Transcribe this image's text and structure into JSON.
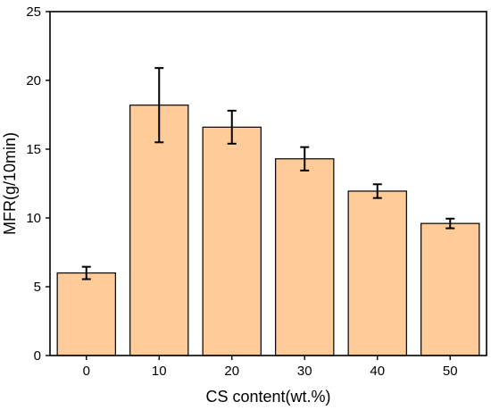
{
  "chart_data": {
    "type": "bar",
    "title": "",
    "xlabel": "CS content(wt.%)",
    "ylabel": "MFR(g/10min)",
    "categories": [
      "0",
      "10",
      "20",
      "30",
      "40",
      "50"
    ],
    "values": [
      6.0,
      18.2,
      16.6,
      14.3,
      11.95,
      9.6
    ],
    "errors": [
      0.45,
      2.7,
      1.2,
      0.85,
      0.5,
      0.35
    ],
    "ylim": [
      0,
      25
    ],
    "yticks": [
      0,
      5,
      10,
      15,
      20,
      25
    ],
    "grid": false,
    "colors": {
      "bar_fill": "#FFCC99",
      "bar_stroke": "#000000",
      "axis": "#000000"
    }
  }
}
